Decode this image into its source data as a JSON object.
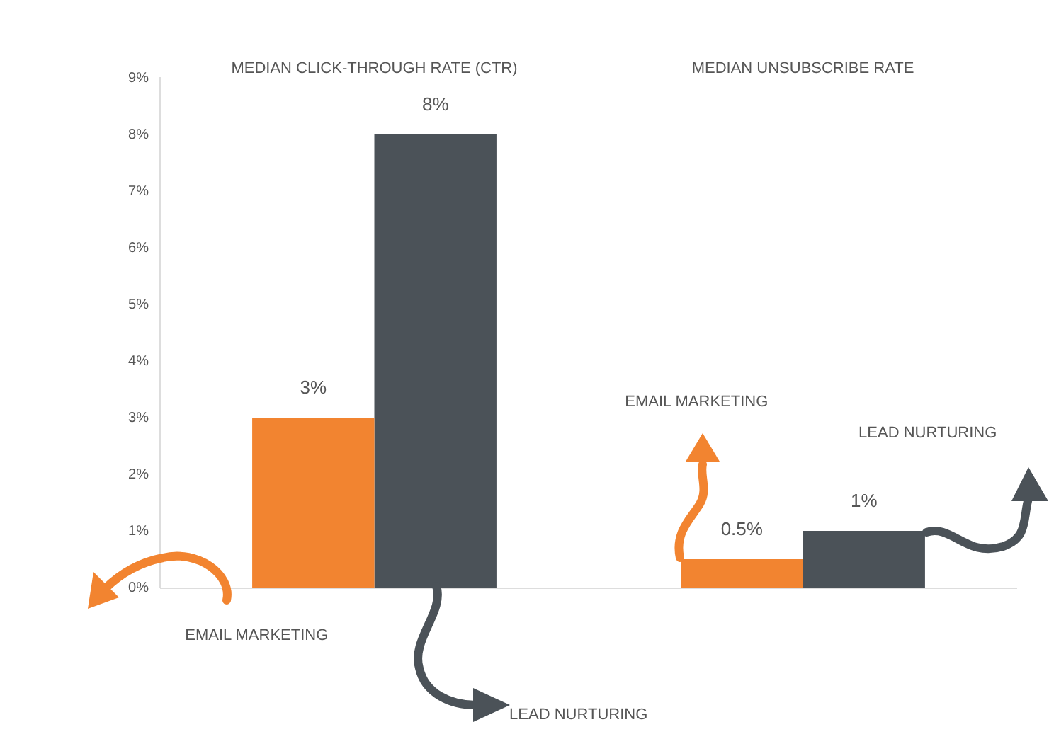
{
  "chart_data": {
    "type": "bar",
    "categories": [
      "MEDIAN CLICK-THROUGH RATE (CTR)",
      "MEDIAN UNSUBSCRIBE RATE"
    ],
    "series": [
      {
        "name": "EMAIL MARKETING",
        "color": "#f28430",
        "values": [
          3,
          0.5
        ],
        "value_labels": [
          "3%",
          "0.5%"
        ]
      },
      {
        "name": "LEAD NURTURING",
        "color": "#4b5258",
        "values": [
          8,
          1
        ],
        "value_labels": [
          "8%",
          "1%"
        ]
      }
    ],
    "ylim": [
      0,
      9
    ],
    "yticks": [
      {
        "value": 0,
        "label": "0%"
      },
      {
        "value": 1,
        "label": "1%"
      },
      {
        "value": 2,
        "label": "2%"
      },
      {
        "value": 3,
        "label": "3%"
      },
      {
        "value": 4,
        "label": "4%"
      },
      {
        "value": 5,
        "label": "5%"
      },
      {
        "value": 6,
        "label": "6%"
      },
      {
        "value": 7,
        "label": "7%"
      },
      {
        "value": 8,
        "label": "8%"
      },
      {
        "value": 9,
        "label": "9%"
      }
    ]
  }
}
